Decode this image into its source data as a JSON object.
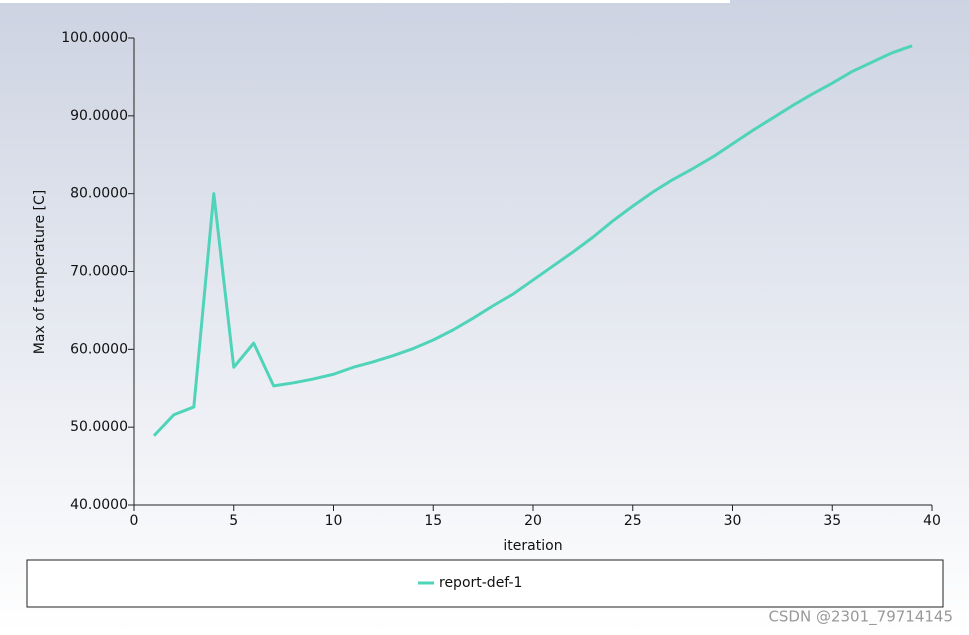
{
  "chart_data": {
    "type": "line",
    "x_label": "iteration",
    "y_label": "Max of temperature [C]",
    "x": [
      1,
      2,
      3,
      4,
      5,
      6,
      7,
      8,
      9,
      10,
      11,
      12,
      13,
      14,
      15,
      16,
      17,
      18,
      19,
      20,
      21,
      22,
      23,
      24,
      25,
      26,
      27,
      28,
      29,
      30,
      31,
      32,
      33,
      34,
      35,
      36,
      37,
      38,
      39
    ],
    "series": [
      {
        "name": "report-def-1",
        "color": "#4fd4b9",
        "values": [
          48.9,
          51.6,
          52.6,
          80.0,
          57.7,
          60.8,
          55.3,
          55.7,
          56.2,
          56.8,
          57.7,
          58.4,
          59.2,
          60.1,
          61.2,
          62.5,
          64.0,
          65.6,
          67.1,
          68.9,
          70.7,
          72.5,
          74.4,
          76.5,
          78.4,
          80.2,
          81.8,
          83.2,
          84.7,
          86.4,
          88.1,
          89.7,
          91.3,
          92.8,
          94.2,
          95.7,
          96.9,
          98.1,
          99.0
        ]
      }
    ],
    "xlim": [
      0,
      40
    ],
    "xticks": [
      0,
      5,
      10,
      15,
      20,
      25,
      30,
      35,
      40
    ],
    "ylim": [
      40,
      100
    ],
    "yticks": [
      {
        "value": 40,
        "label": "40.0000"
      },
      {
        "value": 50,
        "label": "50.0000"
      },
      {
        "value": 60,
        "label": "60.0000"
      },
      {
        "value": 70,
        "label": "70.0000"
      },
      {
        "value": 80,
        "label": "80.0000"
      },
      {
        "value": 90,
        "label": "90.0000"
      },
      {
        "value": 100,
        "label": "100.0000"
      }
    ],
    "watermark": "CSDN @2301_79714145"
  }
}
